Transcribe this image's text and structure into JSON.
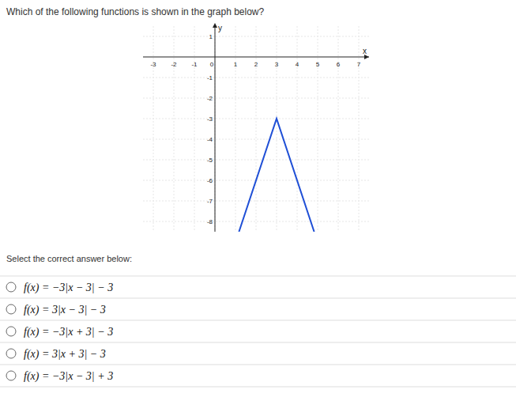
{
  "question": "Which of the following functions is shown in the graph below?",
  "chart_data": {
    "type": "line",
    "x_label": "x",
    "y_label": "y",
    "x": [
      1.17,
      3,
      4.83
    ],
    "values": [
      -8.5,
      -3,
      -8.5
    ],
    "color": "#1f4fd6",
    "xlim": [
      -3.5,
      7.5
    ],
    "ylim": [
      -8.5,
      1.5
    ],
    "xticks": [
      -3,
      -2,
      -1,
      0,
      1,
      2,
      3,
      4,
      5,
      6,
      7
    ],
    "yticks": [
      -8,
      -7,
      -6,
      -5,
      -4,
      -3,
      -2,
      -1,
      1
    ],
    "grid": true
  },
  "prompt": "Select the correct answer below:",
  "options": [
    "f(x) = −3|x − 3| − 3",
    "f(x) = 3|x − 3| − 3",
    "f(x) = −3|x + 3| − 3",
    "f(x) = 3|x + 3| − 3",
    "f(x) = −3|x − 3| + 3"
  ]
}
